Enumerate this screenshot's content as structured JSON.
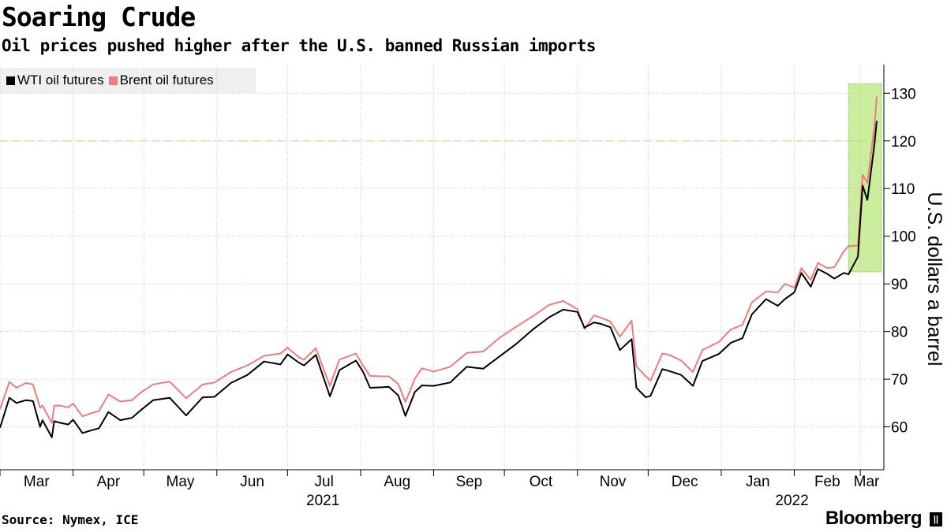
{
  "title": "Soaring Crude",
  "subtitle": "Oil prices pushed higher after the U.S. banned Russian imports",
  "source": "Source: Nymex, ICE",
  "brand": "Bloomberg",
  "brand_mark": "||",
  "colors": {
    "wti": "#000000",
    "brent": "#f07b7b",
    "highlight": "#a6e35e",
    "highlight_border": "#7bc43f",
    "reference_line": "#d6ecb0",
    "grid": "#c8c8c8"
  },
  "chart_data": {
    "type": "line",
    "title": "Soaring Crude",
    "subtitle": "Oil prices pushed higher after the U.S. banned Russian imports",
    "ylabel": "U.S. dollars a barrel",
    "xlabel": "",
    "y_axis_side": "right",
    "ylim": [
      51,
      136
    ],
    "yticks": [
      60,
      70,
      80,
      90,
      100,
      110,
      120,
      130
    ],
    "grid": true,
    "legend_placement": "top-left",
    "x_start": "2021-03-01",
    "x_end": "2022-03-11",
    "month_ticks": [
      "Mar",
      "Apr",
      "May",
      "Jun",
      "Jul",
      "Aug",
      "Sep",
      "Oct",
      "Nov",
      "Dec",
      "Jan",
      "Feb",
      "Mar"
    ],
    "month_tick_dates": [
      "2021-03-01",
      "2021-04-01",
      "2021-05-01",
      "2021-06-01",
      "2021-07-01",
      "2021-08-01",
      "2021-09-01",
      "2021-10-01",
      "2021-11-01",
      "2021-12-01",
      "2022-01-01",
      "2022-02-01",
      "2022-03-01"
    ],
    "year_labels": [
      {
        "label": "2021",
        "date": "2021-07-16"
      },
      {
        "label": "2022",
        "date": "2022-01-31"
      }
    ],
    "reference_line": {
      "y": 120,
      "style": "dashed"
    },
    "highlight_region": {
      "x_start": "2022-02-24",
      "x_end": "2022-03-10",
      "y_start": 92.5,
      "y_end": 132
    },
    "series": [
      {
        "name": "WTI oil futures",
        "x": [
          "2021-03-01",
          "2021-03-05",
          "2021-03-08",
          "2021-03-12",
          "2021-03-15",
          "2021-03-18",
          "2021-03-19",
          "2021-03-23",
          "2021-03-24",
          "2021-03-26",
          "2021-03-30",
          "2021-04-01",
          "2021-04-05",
          "2021-04-09",
          "2021-04-12",
          "2021-04-16",
          "2021-04-21",
          "2021-04-26",
          "2021-04-30",
          "2021-05-05",
          "2021-05-12",
          "2021-05-19",
          "2021-05-26",
          "2021-05-31",
          "2021-06-07",
          "2021-06-14",
          "2021-06-21",
          "2021-06-28",
          "2021-07-01",
          "2021-07-06",
          "2021-07-08",
          "2021-07-13",
          "2021-07-19",
          "2021-07-23",
          "2021-07-30",
          "2021-08-02",
          "2021-08-05",
          "2021-08-10",
          "2021-08-13",
          "2021-08-17",
          "2021-08-20",
          "2021-08-24",
          "2021-08-27",
          "2021-09-01",
          "2021-09-08",
          "2021-09-15",
          "2021-09-22",
          "2021-09-29",
          "2021-10-06",
          "2021-10-13",
          "2021-10-20",
          "2021-10-26",
          "2021-11-01",
          "2021-11-04",
          "2021-11-08",
          "2021-11-11",
          "2021-11-15",
          "2021-11-19",
          "2021-11-24",
          "2021-11-26",
          "2021-11-30",
          "2021-12-02",
          "2021-12-07",
          "2021-12-10",
          "2021-12-15",
          "2021-12-20",
          "2021-12-24",
          "2021-12-31",
          "2022-01-05",
          "2022-01-10",
          "2022-01-14",
          "2022-01-20",
          "2022-01-25",
          "2022-01-28",
          "2022-02-01",
          "2022-02-04",
          "2022-02-08",
          "2022-02-11",
          "2022-02-15",
          "2022-02-18",
          "2022-02-22",
          "2022-02-24",
          "2022-02-28",
          "2022-03-02",
          "2022-03-04",
          "2022-03-07",
          "2022-03-08"
        ],
        "values": [
          59.8,
          66.1,
          65.0,
          65.6,
          65.4,
          60.0,
          61.4,
          57.8,
          61.2,
          60.9,
          60.5,
          61.5,
          58.7,
          59.3,
          59.7,
          63.1,
          61.4,
          61.9,
          63.6,
          65.6,
          66.1,
          62.4,
          66.2,
          66.3,
          69.2,
          70.9,
          73.7,
          73.1,
          75.2,
          73.4,
          72.9,
          75.1,
          66.4,
          71.9,
          73.9,
          71.6,
          68.2,
          68.3,
          68.4,
          66.6,
          62.3,
          67.3,
          68.7,
          68.6,
          69.3,
          72.6,
          72.2,
          74.8,
          77.4,
          80.4,
          83.0,
          84.6,
          84.1,
          80.8,
          81.9,
          81.6,
          80.9,
          76.1,
          78.4,
          68.2,
          66.2,
          66.5,
          72.1,
          71.7,
          70.9,
          68.6,
          73.8,
          75.3,
          77.6,
          78.6,
          83.6,
          86.8,
          85.4,
          86.8,
          88.2,
          92.3,
          89.4,
          93.1,
          92.1,
          91.1,
          92.3,
          92.0,
          95.7,
          110.6,
          107.6,
          119.4,
          124.2
        ]
      },
      {
        "name": "Brent oil futures",
        "x": [
          "2021-03-01",
          "2021-03-05",
          "2021-03-08",
          "2021-03-12",
          "2021-03-15",
          "2021-03-18",
          "2021-03-19",
          "2021-03-23",
          "2021-03-24",
          "2021-03-26",
          "2021-03-30",
          "2021-04-01",
          "2021-04-05",
          "2021-04-09",
          "2021-04-12",
          "2021-04-16",
          "2021-04-21",
          "2021-04-26",
          "2021-04-30",
          "2021-05-05",
          "2021-05-12",
          "2021-05-19",
          "2021-05-26",
          "2021-05-31",
          "2021-06-07",
          "2021-06-14",
          "2021-06-21",
          "2021-06-28",
          "2021-07-01",
          "2021-07-06",
          "2021-07-08",
          "2021-07-13",
          "2021-07-19",
          "2021-07-23",
          "2021-07-30",
          "2021-08-02",
          "2021-08-05",
          "2021-08-10",
          "2021-08-13",
          "2021-08-17",
          "2021-08-20",
          "2021-08-24",
          "2021-08-27",
          "2021-09-01",
          "2021-09-08",
          "2021-09-15",
          "2021-09-22",
          "2021-09-29",
          "2021-10-06",
          "2021-10-13",
          "2021-10-20",
          "2021-10-26",
          "2021-11-01",
          "2021-11-04",
          "2021-11-08",
          "2021-11-11",
          "2021-11-15",
          "2021-11-19",
          "2021-11-24",
          "2021-11-26",
          "2021-11-30",
          "2021-12-02",
          "2021-12-07",
          "2021-12-10",
          "2021-12-15",
          "2021-12-20",
          "2021-12-24",
          "2021-12-31",
          "2022-01-05",
          "2022-01-10",
          "2022-01-14",
          "2022-01-20",
          "2022-01-25",
          "2022-01-28",
          "2022-02-01",
          "2022-02-04",
          "2022-02-08",
          "2022-02-11",
          "2022-02-15",
          "2022-02-18",
          "2022-02-22",
          "2022-02-24",
          "2022-02-28",
          "2022-03-02",
          "2022-03-04",
          "2022-03-07",
          "2022-03-08"
        ],
        "values": [
          63.7,
          69.4,
          68.2,
          69.2,
          68.9,
          64.0,
          64.5,
          60.8,
          64.4,
          64.5,
          64.1,
          64.9,
          62.2,
          62.9,
          63.3,
          66.8,
          65.3,
          65.6,
          67.3,
          68.9,
          69.5,
          66.0,
          68.9,
          69.3,
          71.5,
          72.9,
          74.9,
          75.4,
          76.6,
          74.5,
          74.1,
          76.5,
          68.6,
          74.1,
          75.4,
          72.9,
          70.7,
          70.6,
          70.6,
          69.0,
          65.2,
          70.1,
          72.3,
          71.6,
          72.6,
          75.5,
          75.8,
          78.7,
          81.0,
          83.2,
          85.6,
          86.4,
          84.7,
          80.5,
          83.4,
          82.9,
          82.1,
          78.9,
          82.3,
          72.7,
          70.6,
          69.7,
          75.4,
          75.1,
          73.9,
          71.5,
          76.1,
          77.8,
          80.4,
          81.4,
          86.1,
          88.4,
          88.2,
          90.0,
          89.2,
          93.3,
          90.8,
          94.4,
          93.3,
          93.5,
          96.8,
          97.9,
          98.0,
          112.9,
          111.2,
          123.2,
          129.3
        ]
      }
    ]
  }
}
